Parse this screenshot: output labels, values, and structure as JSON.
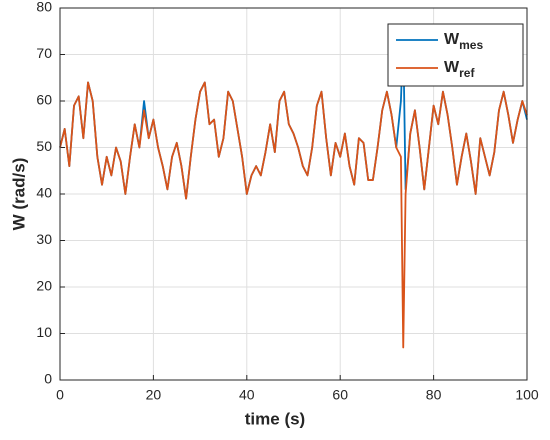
{
  "chart_data": {
    "type": "line",
    "xlabel": "time (s)",
    "ylabel": "W (rad/s)",
    "x": [
      0,
      1,
      2,
      3,
      4,
      5,
      6,
      7,
      8,
      9,
      10,
      11,
      12,
      13,
      14,
      15,
      16,
      17,
      18,
      19,
      20,
      21,
      22,
      23,
      24,
      25,
      26,
      27,
      28,
      29,
      30,
      31,
      32,
      33,
      34,
      35,
      36,
      37,
      38,
      39,
      40,
      41,
      42,
      43,
      44,
      45,
      46,
      47,
      48,
      49,
      50,
      51,
      52,
      53,
      54,
      55,
      56,
      57,
      58,
      59,
      60,
      61,
      62,
      63,
      64,
      65,
      66,
      67,
      68,
      69,
      70,
      71,
      72,
      73,
      73.5,
      74,
      75,
      76,
      77,
      78,
      79,
      80,
      81,
      82,
      83,
      84,
      85,
      86,
      87,
      88,
      89,
      90,
      91,
      92,
      93,
      94,
      95,
      96,
      97,
      98,
      99,
      100
    ],
    "series": [
      {
        "name": "W",
        "subscript": "mes",
        "color": "#0072bd",
        "values": [
          50,
          54,
          46,
          59,
          61,
          52,
          64,
          60,
          48,
          42,
          48,
          44,
          50,
          47,
          40,
          48,
          55,
          50,
          60,
          52,
          56,
          50,
          46,
          41,
          48,
          51,
          46,
          39,
          48,
          56,
          62,
          64,
          55,
          56,
          48,
          52,
          62,
          60,
          54,
          48,
          40,
          44,
          46,
          44,
          49,
          55,
          49,
          60,
          62,
          55,
          53,
          50,
          46,
          44,
          50,
          59,
          62,
          52,
          44,
          51,
          48,
          53,
          46,
          42,
          52,
          51,
          43,
          43,
          50,
          58,
          62,
          57,
          50,
          60,
          74,
          41,
          53,
          58,
          50,
          41,
          50,
          59,
          55,
          62,
          57,
          50,
          42,
          48,
          53,
          47,
          40,
          52,
          48,
          44,
          49,
          58,
          62,
          57,
          51,
          56,
          60,
          56
        ]
      },
      {
        "name": "W",
        "subscript": "ref",
        "color": "#d95319",
        "values": [
          50,
          54,
          46,
          59,
          61,
          52,
          64,
          60,
          48,
          42,
          48,
          44,
          50,
          47,
          40,
          48,
          55,
          50,
          58,
          52,
          56,
          50,
          46,
          41,
          48,
          51,
          46,
          39,
          48,
          56,
          62,
          64,
          55,
          56,
          48,
          52,
          62,
          60,
          54,
          48,
          40,
          44,
          46,
          44,
          49,
          55,
          49,
          60,
          62,
          55,
          53,
          50,
          46,
          44,
          50,
          59,
          62,
          52,
          44,
          51,
          48,
          53,
          46,
          42,
          52,
          51,
          43,
          43,
          50,
          58,
          62,
          57,
          50,
          48,
          7,
          40,
          53,
          58,
          50,
          41,
          50,
          59,
          55,
          62,
          57,
          50,
          42,
          48,
          53,
          47,
          40,
          52,
          48,
          44,
          49,
          58,
          62,
          57,
          51,
          56,
          60,
          57
        ]
      }
    ],
    "xlim": [
      0,
      100
    ],
    "xticks": [
      0,
      20,
      40,
      60,
      80,
      100
    ],
    "ylim": [
      0,
      80
    ],
    "yticks": [
      0,
      10,
      20,
      30,
      40,
      50,
      60,
      70,
      80
    ],
    "grid": true,
    "legend": "top-right"
  }
}
